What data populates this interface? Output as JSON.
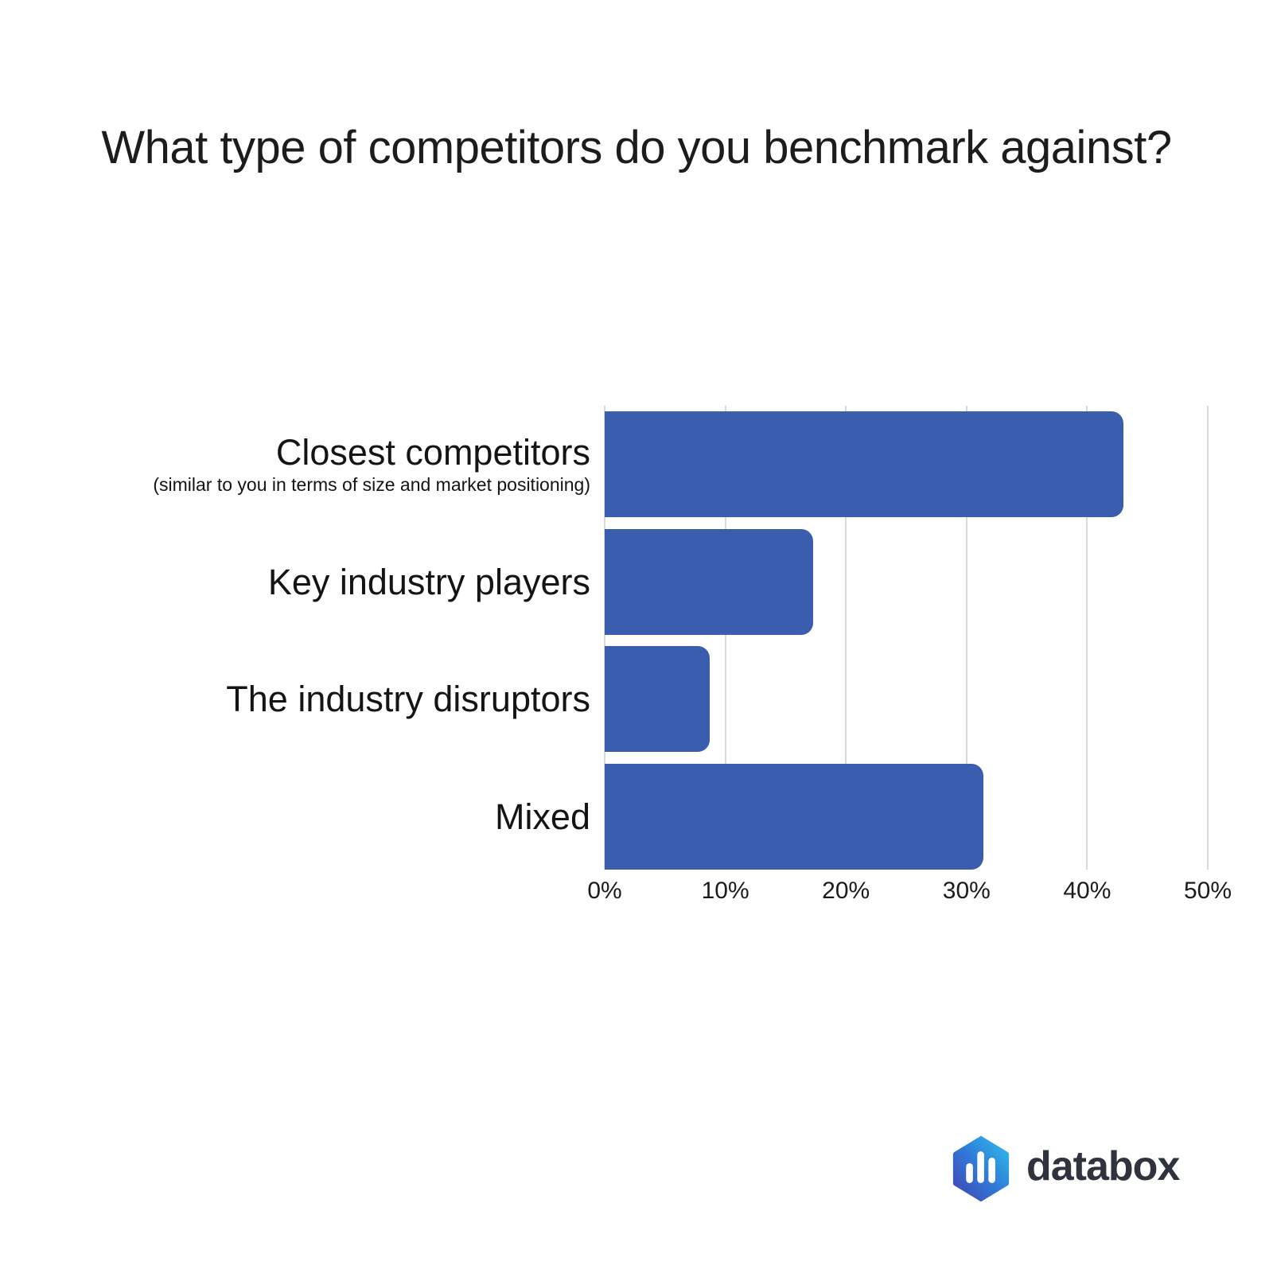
{
  "chart_data": {
    "type": "bar",
    "orientation": "horizontal",
    "title": "What type of competitors do you benchmark against?",
    "categories": [
      "Closest competitors",
      "Key industry players",
      "The industry disruptors",
      "Mixed"
    ],
    "values": [
      43,
      17.3,
      8.7,
      31.4
    ],
    "unit": "%",
    "xlabel": "",
    "ylabel": "",
    "xlim": [
      0,
      50
    ],
    "x_ticks": [
      "0%",
      "10%",
      "20%",
      "30%",
      "40%",
      "50%"
    ],
    "grid": "vertical-light-gray",
    "legend": "none",
    "bar_color": "#3b5dad",
    "gridline_color": "#d9d9d9",
    "rows": [
      {
        "label": "Closest competitors",
        "subtitle": "(similar to you in terms of size and market positioning)",
        "value": 43
      },
      {
        "label": "Key industry players",
        "subtitle": "",
        "value": 17.3
      },
      {
        "label": "The industry disruptors",
        "subtitle": "",
        "value": 8.7
      },
      {
        "label": "Mixed",
        "subtitle": "",
        "value": 31.4
      }
    ]
  },
  "branding": {
    "logo_text": "databox",
    "wordmark_color": "#2e333e",
    "hexagon_gradient": [
      "#433fae",
      "#2f7bd8",
      "#2fc3ec"
    ],
    "icon_bar_color": "#ffffff"
  }
}
